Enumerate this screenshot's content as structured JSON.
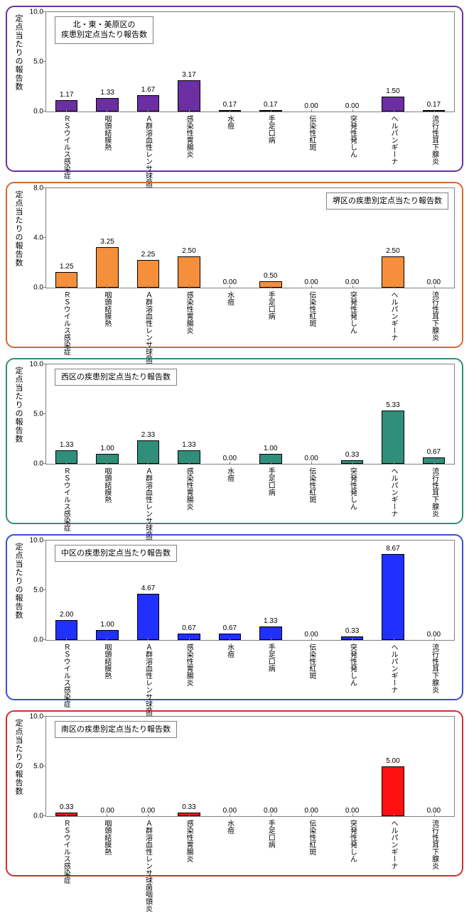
{
  "common": {
    "ylabel": "定点当たりの報告数",
    "categories": [
      "ＲＳウイルス感染症",
      "咽頭結膜熱",
      "Ａ群溶血性レンサ球菌咽頭炎",
      "感染性胃腸炎",
      "水痘",
      "手足口病",
      "伝染性紅斑",
      "突発性発しん",
      "ヘルパンギーナ",
      "流行性耳下腺炎"
    ],
    "label_fontsize": 10,
    "value_fontsize": 10,
    "grid_color": "#808080",
    "background_color": "#ffffff"
  },
  "charts": [
    {
      "title": "北・東・美原区の\n疾患別定点当たり報告数",
      "title_pos": "left",
      "border_color": "#6b2fa3",
      "bar_color": "#6b2fa3",
      "ylim": [
        0,
        10
      ],
      "ytick_step": 5,
      "values": [
        1.17,
        1.33,
        1.67,
        3.17,
        0.17,
        0.17,
        0.0,
        0.0,
        1.5,
        0.17
      ]
    },
    {
      "title": "堺区の疾患別定点当たり報告数",
      "title_pos": "right",
      "border_color": "#d46a2f",
      "bar_color": "#f58f3c",
      "ylim": [
        0,
        8
      ],
      "ytick_step": 4,
      "values": [
        1.25,
        3.25,
        2.25,
        2.5,
        0.0,
        0.5,
        0.0,
        0.0,
        2.5,
        0.0
      ]
    },
    {
      "title": "西区の疾患別定点当たり報告数",
      "title_pos": "left",
      "border_color": "#2f8f7a",
      "bar_color": "#2f8f7a",
      "ylim": [
        0,
        10
      ],
      "ytick_step": 5,
      "values": [
        1.33,
        1.0,
        2.33,
        1.33,
        0.0,
        1.0,
        0.0,
        0.33,
        5.33,
        0.67
      ]
    },
    {
      "title": "中区の疾患別定点当たり報告数",
      "title_pos": "left",
      "border_color": "#3a4fcf",
      "bar_color": "#2030ff",
      "ylim": [
        0,
        10
      ],
      "ytick_step": 5,
      "values": [
        2.0,
        1.0,
        4.67,
        0.67,
        0.67,
        1.33,
        0.0,
        0.33,
        8.67,
        0.0
      ]
    },
    {
      "title": "南区の疾患別定点当たり報告数",
      "title_pos": "left",
      "border_color": "#d03030",
      "bar_color": "#ff1010",
      "ylim": [
        0,
        10
      ],
      "ytick_step": 5,
      "values": [
        0.33,
        0.0,
        0.0,
        0.33,
        0.0,
        0.0,
        0.0,
        0.0,
        5.0,
        0.0
      ]
    }
  ]
}
